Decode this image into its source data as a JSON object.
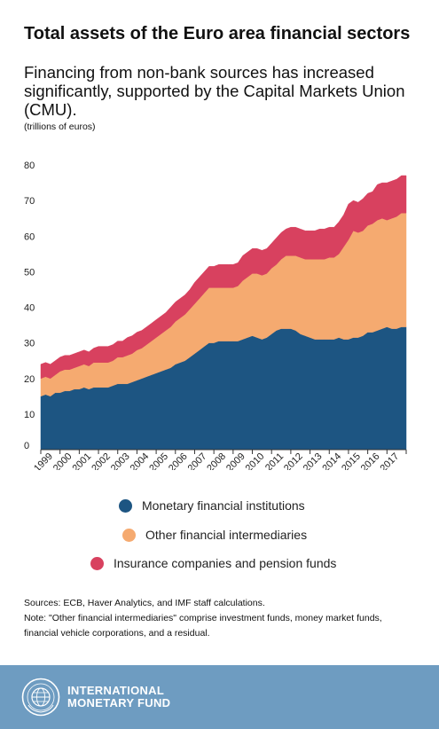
{
  "header": {
    "title": "Total assets of the Euro area financial sectors",
    "subtitle": "Financing from non-bank sources has increased significantly, supported by the Capital Markets Union (CMU).",
    "units": "(trillions of euros)"
  },
  "chart_data": {
    "type": "area",
    "stacked": true,
    "x": [
      1999.0,
      1999.25,
      1999.5,
      1999.75,
      2000.0,
      2000.25,
      2000.5,
      2000.75,
      2001.0,
      2001.25,
      2001.5,
      2001.75,
      2002.0,
      2002.25,
      2002.5,
      2002.75,
      2003.0,
      2003.25,
      2003.5,
      2003.75,
      2004.0,
      2004.25,
      2004.5,
      2004.75,
      2005.0,
      2005.25,
      2005.5,
      2005.75,
      2006.0,
      2006.25,
      2006.5,
      2006.75,
      2007.0,
      2007.25,
      2007.5,
      2007.75,
      2008.0,
      2008.25,
      2008.5,
      2008.75,
      2009.0,
      2009.25,
      2009.5,
      2009.75,
      2010.0,
      2010.25,
      2010.5,
      2010.75,
      2011.0,
      2011.25,
      2011.5,
      2011.75,
      2012.0,
      2012.25,
      2012.5,
      2012.75,
      2013.0,
      2013.25,
      2013.5,
      2013.75,
      2014.0,
      2014.25,
      2014.5,
      2014.75,
      2015.0,
      2015.25,
      2015.5,
      2015.75,
      2016.0,
      2016.25,
      2016.5,
      2016.75,
      2017.0,
      2017.25,
      2017.5,
      2017.75
    ],
    "series": [
      {
        "name": "Monetary financial institutions",
        "color": "#1d5582",
        "values": [
          15,
          15.5,
          15,
          16,
          16,
          16.5,
          16.5,
          17,
          17,
          17.5,
          17,
          17.5,
          17.5,
          17.5,
          17.5,
          18,
          18.5,
          18.5,
          18.5,
          19,
          19.5,
          20,
          20.5,
          21,
          21.5,
          22,
          22.5,
          23,
          24,
          24.5,
          25,
          26,
          27,
          28,
          29,
          30,
          30,
          30.5,
          30.5,
          30.5,
          30.5,
          30.5,
          31,
          31.5,
          32,
          31.5,
          31,
          31.5,
          32.5,
          33.5,
          34,
          34,
          34,
          33.5,
          32.5,
          32,
          31.5,
          31,
          31,
          31,
          31,
          31,
          31.5,
          31,
          31,
          31.5,
          31.5,
          32,
          33,
          33,
          33.5,
          34,
          34.5,
          34,
          34,
          34.5
        ]
      },
      {
        "name": "Other financial intermediaries",
        "color": "#f5aa70",
        "values": [
          5,
          5,
          5,
          5,
          6,
          6,
          6,
          6,
          6.5,
          6.5,
          6.5,
          7,
          7,
          7,
          7,
          7,
          7.5,
          7.5,
          8,
          8,
          8.5,
          8.5,
          9,
          9.5,
          10,
          10.5,
          11,
          11.5,
          12,
          12.5,
          13,
          13.5,
          14,
          14.5,
          15,
          15.5,
          15.5,
          15,
          15,
          15,
          15,
          15.5,
          16.5,
          17,
          17.5,
          18,
          18,
          18,
          18.5,
          18.5,
          19.5,
          20.5,
          20.5,
          21,
          21.5,
          21.5,
          22,
          22.5,
          22.5,
          22.5,
          23,
          23,
          23.5,
          26,
          28,
          30,
          29.5,
          29.5,
          30,
          30.5,
          31,
          31,
          30,
          31,
          31.5,
          32
        ]
      },
      {
        "name": "Insurance companies and pension funds",
        "color": "#d8415f",
        "values": [
          4,
          4,
          4,
          4,
          4,
          4,
          4,
          4,
          4,
          4,
          4,
          4,
          4.5,
          4.5,
          4.5,
          4.5,
          4.5,
          4.5,
          5,
          5,
          5,
          5,
          5,
          5,
          5,
          5,
          5,
          5.5,
          5.5,
          5.5,
          5.5,
          5.5,
          6,
          6,
          6,
          6,
          6,
          6.5,
          6.5,
          6.5,
          6.5,
          6.5,
          7,
          7,
          7,
          7,
          7,
          7,
          7,
          7.5,
          7.5,
          7.5,
          8,
          8,
          8,
          8,
          8,
          8,
          8.5,
          8.5,
          8.5,
          8.5,
          9,
          9,
          10,
          8.5,
          8.5,
          9,
          9,
          9,
          10,
          10,
          10.5,
          10.5,
          10.5,
          10.5
        ]
      }
    ],
    "tick_labels": [
      "1999",
      "2000",
      "2001",
      "2002",
      "2003",
      "2004",
      "2005",
      "2006",
      "2007",
      "2008",
      "2009",
      "2010",
      "2011",
      "2012",
      "2013",
      "2014",
      "2015",
      "2016",
      "2017"
    ],
    "yticks": [
      "0",
      "10",
      "20",
      "30",
      "40",
      "50",
      "60",
      "70",
      "80"
    ],
    "ylim": [
      0,
      80
    ],
    "xlim": [
      1999,
      2018
    ],
    "grid": false,
    "legend_position": "bottom"
  },
  "legend": {
    "items": [
      {
        "label": "Monetary financial institutions",
        "color": "#1d5582"
      },
      {
        "label": "Other financial intermediaries",
        "color": "#f5aa70"
      },
      {
        "label": "Insurance companies and pension funds",
        "color": "#d8415f"
      }
    ]
  },
  "notes": {
    "sources": "Sources: ECB, Haver Analytics, and IMF staff calculations.",
    "note": "Note: \"Other financial intermediaries\" comprise investment funds, money market funds, financial vehicle corporations, and a residual."
  },
  "footer": {
    "org_line1": "INTERNATIONAL",
    "org_line2": "MONETARY FUND",
    "background": "#6e9cc1",
    "seal_icon": "imf-seal-icon"
  }
}
